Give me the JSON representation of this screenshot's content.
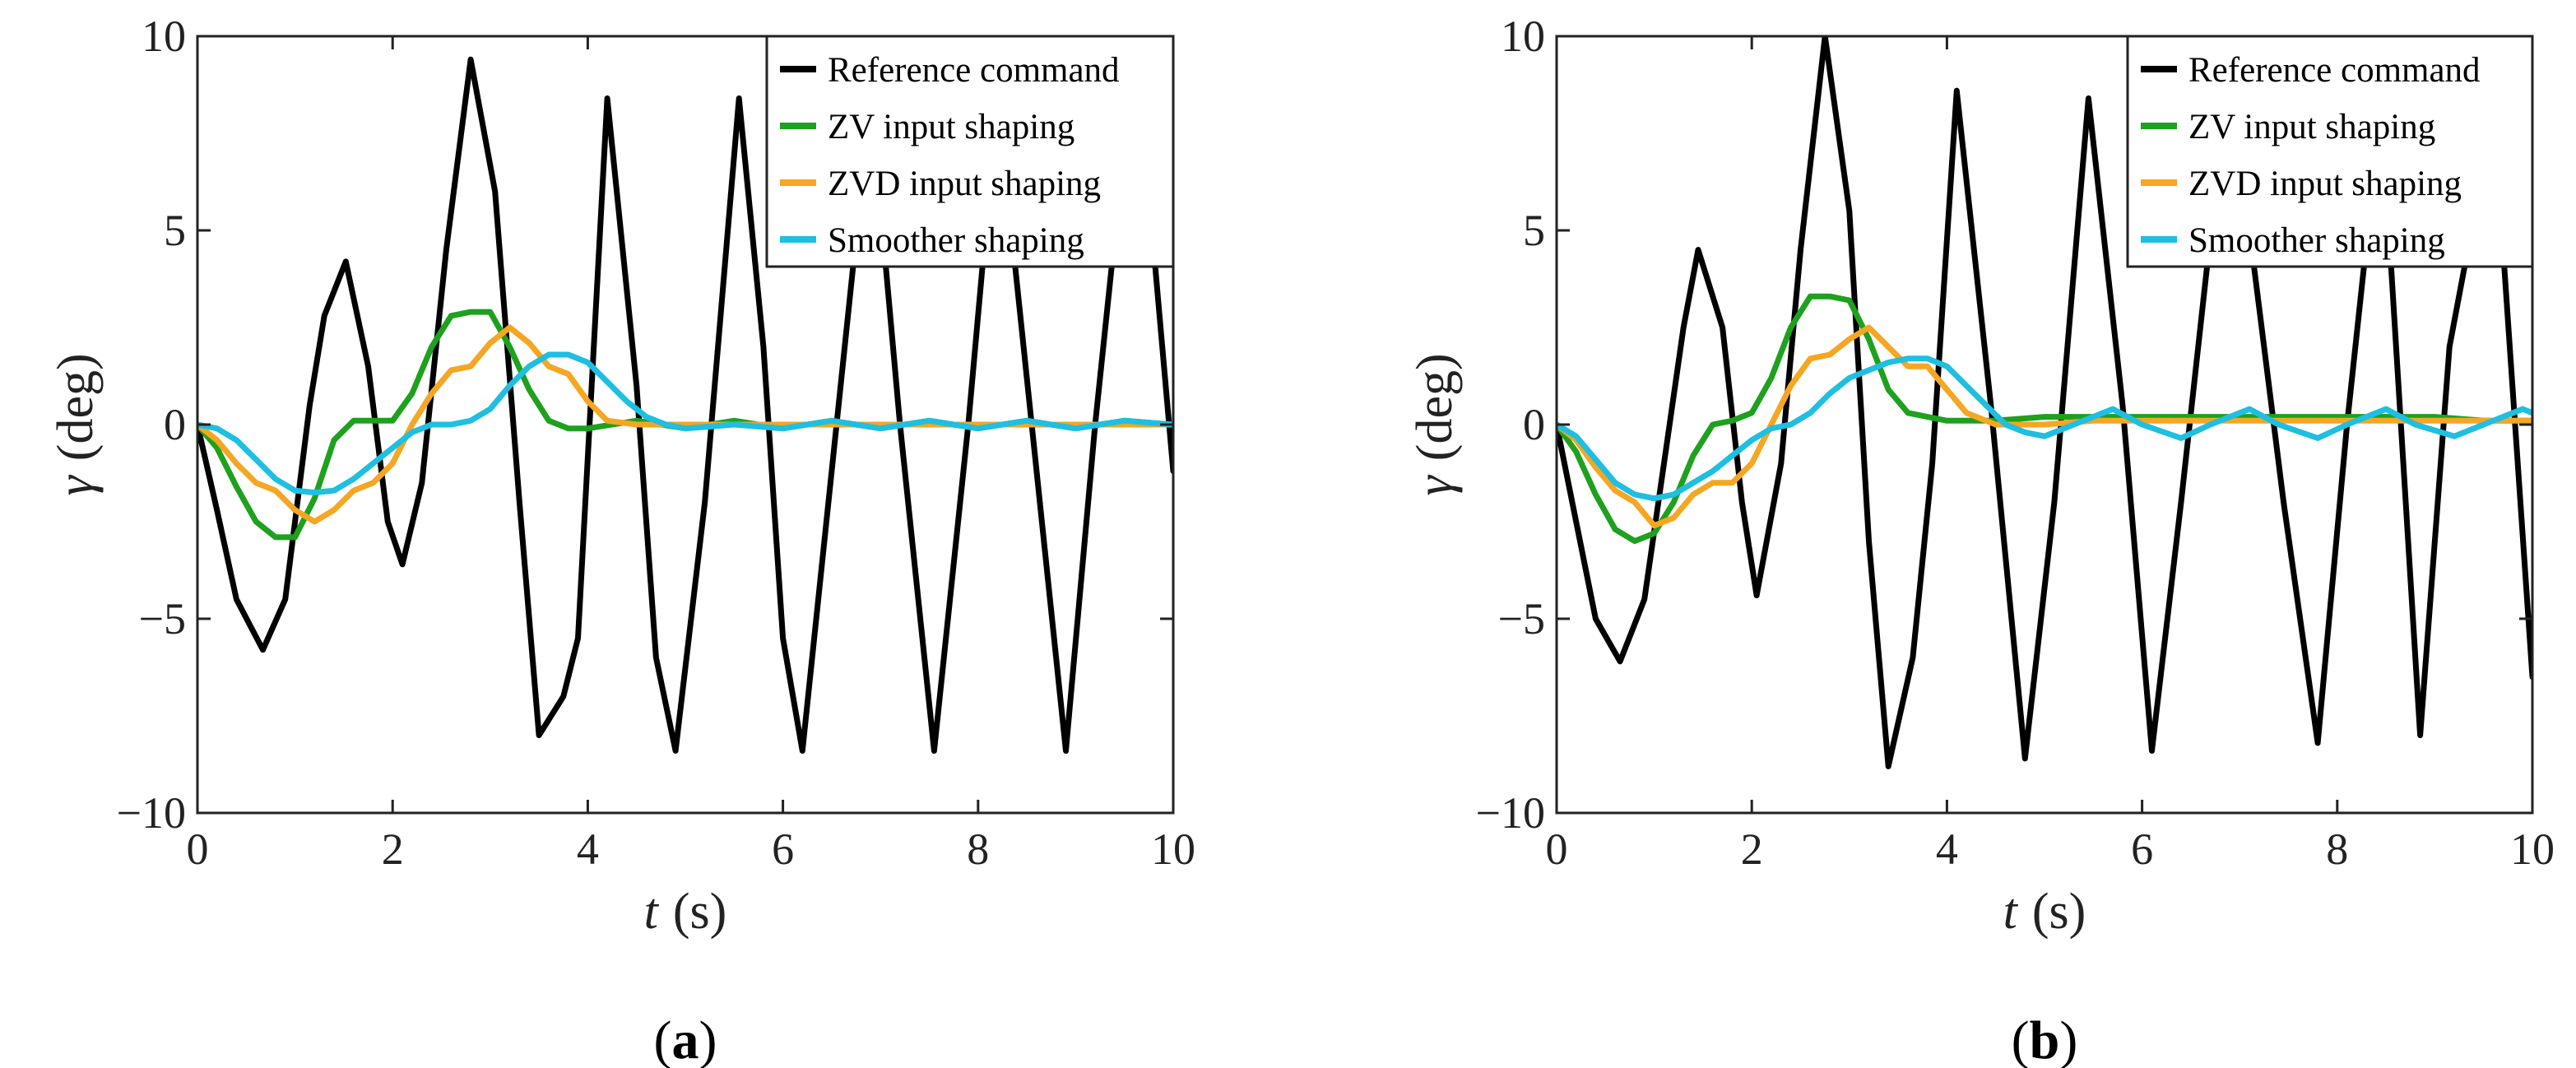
{
  "chart_data": [
    {
      "panel_label": "a",
      "type": "line",
      "xlabel_var": "t",
      "xlabel_unit": "(s)",
      "ylabel_var": "γ",
      "ylabel_unit": "(deg)",
      "xlim": [
        0,
        10
      ],
      "ylim": [
        -10,
        10
      ],
      "xticks": [
        0,
        2,
        4,
        6,
        8,
        10
      ],
      "yticks": [
        -10,
        -5,
        0,
        5,
        10
      ],
      "xtick_labels": [
        "0",
        "2",
        "4",
        "6",
        "8",
        "10"
      ],
      "ytick_labels": [
        "−10",
        "−5",
        "0",
        "5",
        "10"
      ],
      "grid": false,
      "legend_position": "top-right",
      "series": [
        {
          "name": "Reference command",
          "color": "#000000",
          "x": [
            0,
            0.2,
            0.4,
            0.67,
            0.9,
            1.15,
            1.3,
            1.52,
            1.75,
            1.95,
            2.1,
            2.3,
            2.55,
            2.8,
            3.05,
            3.3,
            3.5,
            3.75,
            3.9,
            4.2,
            4.5,
            4.7,
            4.9,
            5.2,
            5.55,
            5.8,
            6.0,
            6.2,
            6.55,
            6.9,
            7.2,
            7.55,
            7.9,
            8.2,
            8.55,
            8.9,
            9.2,
            9.55,
            9.8,
            10.0
          ],
          "y": [
            0,
            -2.2,
            -4.5,
            -5.8,
            -4.5,
            0.5,
            2.8,
            4.2,
            1.5,
            -2.5,
            -3.6,
            -1.5,
            4.5,
            9.4,
            6.0,
            -2.0,
            -8.0,
            -7.0,
            -5.5,
            8.4,
            1.0,
            -6.0,
            -8.4,
            -2.0,
            8.4,
            2.0,
            -5.5,
            -8.4,
            0.0,
            8.4,
            0.0,
            -8.4,
            0.0,
            8.4,
            0.0,
            -8.4,
            0.0,
            8.4,
            4.5,
            -1.2
          ]
        },
        {
          "name": "ZV input shaping",
          "color": "#1ea11e",
          "x": [
            0,
            0.2,
            0.4,
            0.6,
            0.8,
            1.0,
            1.2,
            1.4,
            1.6,
            1.8,
            2.0,
            2.2,
            2.4,
            2.6,
            2.8,
            3.0,
            3.2,
            3.4,
            3.6,
            3.8,
            4.0,
            4.5,
            5.0,
            5.5,
            6.0,
            6.5,
            7.0,
            7.5,
            8.0,
            8.5,
            9.0,
            9.5,
            10.0
          ],
          "y": [
            0,
            -0.6,
            -1.6,
            -2.5,
            -2.9,
            -2.9,
            -1.9,
            -0.4,
            0.1,
            0.1,
            0.1,
            0.8,
            2.0,
            2.8,
            2.9,
            2.9,
            2.0,
            0.9,
            0.1,
            -0.1,
            -0.1,
            0.1,
            -0.1,
            0.1,
            -0.1,
            0.1,
            -0.1,
            0.1,
            -0.1,
            0.1,
            -0.1,
            0.1,
            0.0
          ]
        },
        {
          "name": "ZVD input shaping",
          "color": "#f5a623",
          "x": [
            0,
            0.2,
            0.4,
            0.6,
            0.8,
            1.0,
            1.2,
            1.4,
            1.6,
            1.8,
            2.0,
            2.2,
            2.4,
            2.6,
            2.8,
            3.0,
            3.2,
            3.4,
            3.6,
            3.8,
            4.0,
            4.2,
            4.5,
            5.0,
            5.5,
            6.0,
            6.5,
            7.0,
            7.5,
            8.0,
            8.5,
            9.0,
            9.5,
            10.0
          ],
          "y": [
            0,
            -0.4,
            -1.0,
            -1.5,
            -1.7,
            -2.2,
            -2.5,
            -2.2,
            -1.7,
            -1.5,
            -1.0,
            0.0,
            0.8,
            1.4,
            1.5,
            2.1,
            2.5,
            2.1,
            1.5,
            1.3,
            0.6,
            0.1,
            0.0,
            0.0,
            0.0,
            0.0,
            0.0,
            0.0,
            0.0,
            0.0,
            0.0,
            0.0,
            0.0,
            0.0
          ]
        },
        {
          "name": "Smoother shaping",
          "color": "#1ebfe0",
          "x": [
            0,
            0.2,
            0.4,
            0.6,
            0.8,
            1.0,
            1.2,
            1.4,
            1.6,
            1.8,
            2.0,
            2.2,
            2.4,
            2.6,
            2.8,
            3.0,
            3.2,
            3.4,
            3.6,
            3.8,
            4.0,
            4.2,
            4.4,
            4.6,
            4.8,
            5.0,
            5.5,
            6.0,
            6.5,
            7.0,
            7.5,
            8.0,
            8.5,
            9.0,
            9.5,
            10.0
          ],
          "y": [
            0,
            -0.1,
            -0.4,
            -0.9,
            -1.4,
            -1.7,
            -1.75,
            -1.7,
            -1.4,
            -1.0,
            -0.6,
            -0.2,
            0.0,
            0.0,
            0.1,
            0.4,
            1.0,
            1.5,
            1.8,
            1.8,
            1.6,
            1.1,
            0.6,
            0.2,
            0.0,
            -0.1,
            0.0,
            -0.1,
            0.1,
            -0.1,
            0.1,
            -0.1,
            0.1,
            -0.1,
            0.1,
            0.0
          ]
        }
      ]
    },
    {
      "panel_label": "b",
      "type": "line",
      "xlabel_var": "t",
      "xlabel_unit": "(s)",
      "ylabel_var": "γ",
      "ylabel_unit": "(deg)",
      "xlim": [
        0,
        10
      ],
      "ylim": [
        -10,
        10
      ],
      "xticks": [
        0,
        2,
        4,
        6,
        8,
        10
      ],
      "yticks": [
        -10,
        -5,
        0,
        5,
        10
      ],
      "xtick_labels": [
        "0",
        "2",
        "4",
        "6",
        "8",
        "10"
      ],
      "ytick_labels": [
        "−10",
        "−5",
        "0",
        "5",
        "10"
      ],
      "grid": false,
      "legend_position": "top-right",
      "series": [
        {
          "name": "Reference command",
          "color": "#000000",
          "x": [
            0,
            0.2,
            0.4,
            0.65,
            0.9,
            1.1,
            1.3,
            1.45,
            1.7,
            1.9,
            2.05,
            2.3,
            2.5,
            2.75,
            3.0,
            3.2,
            3.4,
            3.65,
            3.85,
            4.1,
            4.45,
            4.8,
            5.1,
            5.45,
            5.8,
            6.1,
            6.4,
            6.75,
            7.1,
            7.45,
            7.8,
            8.1,
            8.45,
            8.85,
            9.15,
            9.45,
            9.7,
            10.0
          ],
          "y": [
            0,
            -2.5,
            -5.0,
            -6.1,
            -4.5,
            -1.0,
            2.5,
            4.5,
            2.5,
            -2.0,
            -4.4,
            -1.0,
            4.5,
            10.0,
            5.5,
            -3.0,
            -8.8,
            -6.0,
            -1.0,
            8.6,
            0.5,
            -8.6,
            -2.0,
            8.4,
            0.5,
            -8.4,
            -2.0,
            6.0,
            5.0,
            -2.0,
            -8.2,
            0.0,
            8.2,
            -8.0,
            2.0,
            6.0,
            4.5,
            -6.5
          ]
        },
        {
          "name": "ZV input shaping",
          "color": "#1ea11e",
          "x": [
            0,
            0.2,
            0.4,
            0.6,
            0.8,
            1.0,
            1.2,
            1.4,
            1.6,
            1.8,
            2.0,
            2.2,
            2.4,
            2.6,
            2.8,
            3.0,
            3.2,
            3.4,
            3.6,
            3.8,
            4.0,
            4.5,
            5.0,
            5.5,
            6.0,
            6.5,
            7.0,
            7.5,
            8.0,
            8.5,
            9.0,
            9.5,
            10.0
          ],
          "y": [
            0,
            -0.7,
            -1.8,
            -2.7,
            -3.0,
            -2.8,
            -2.0,
            -0.8,
            0.0,
            0.1,
            0.3,
            1.2,
            2.5,
            3.3,
            3.3,
            3.2,
            2.2,
            0.9,
            0.3,
            0.2,
            0.1,
            0.1,
            0.2,
            0.2,
            0.2,
            0.2,
            0.2,
            0.2,
            0.2,
            0.2,
            0.2,
            0.1,
            0.1
          ]
        },
        {
          "name": "ZVD input shaping",
          "color": "#f5a623",
          "x": [
            0,
            0.2,
            0.4,
            0.6,
            0.8,
            1.0,
            1.2,
            1.4,
            1.6,
            1.8,
            2.0,
            2.2,
            2.4,
            2.6,
            2.8,
            3.0,
            3.2,
            3.4,
            3.6,
            3.8,
            4.0,
            4.2,
            4.5,
            5.0,
            5.5,
            6.0,
            6.5,
            7.0,
            7.5,
            8.0,
            8.5,
            9.0,
            9.5,
            10.0
          ],
          "y": [
            0,
            -0.4,
            -1.1,
            -1.7,
            -2.0,
            -2.6,
            -2.4,
            -1.8,
            -1.5,
            -1.5,
            -1.0,
            0.0,
            1.0,
            1.7,
            1.8,
            2.2,
            2.5,
            2.0,
            1.5,
            1.5,
            0.9,
            0.3,
            0.0,
            0.0,
            0.1,
            0.1,
            0.1,
            0.1,
            0.1,
            0.1,
            0.1,
            0.1,
            0.1,
            0.1
          ]
        },
        {
          "name": "Smoother shaping",
          "color": "#1ebfe0",
          "x": [
            0,
            0.2,
            0.4,
            0.6,
            0.8,
            1.0,
            1.2,
            1.4,
            1.6,
            1.8,
            2.0,
            2.2,
            2.4,
            2.6,
            2.8,
            3.0,
            3.2,
            3.4,
            3.6,
            3.8,
            4.0,
            4.2,
            4.4,
            4.6,
            4.8,
            5.0,
            5.3,
            5.7,
            6.0,
            6.4,
            6.7,
            7.1,
            7.4,
            7.8,
            8.1,
            8.5,
            8.8,
            9.2,
            9.5,
            9.9,
            10.0
          ],
          "y": [
            0,
            -0.3,
            -0.9,
            -1.5,
            -1.8,
            -1.9,
            -1.8,
            -1.5,
            -1.2,
            -0.8,
            -0.4,
            -0.1,
            0.0,
            0.3,
            0.8,
            1.2,
            1.4,
            1.6,
            1.7,
            1.7,
            1.5,
            1.0,
            0.5,
            0.0,
            -0.2,
            -0.3,
            0.0,
            0.4,
            0.0,
            -0.35,
            0.0,
            0.4,
            0.0,
            -0.35,
            0.0,
            0.4,
            0.0,
            -0.3,
            0.0,
            0.4,
            0.3
          ]
        }
      ]
    }
  ]
}
